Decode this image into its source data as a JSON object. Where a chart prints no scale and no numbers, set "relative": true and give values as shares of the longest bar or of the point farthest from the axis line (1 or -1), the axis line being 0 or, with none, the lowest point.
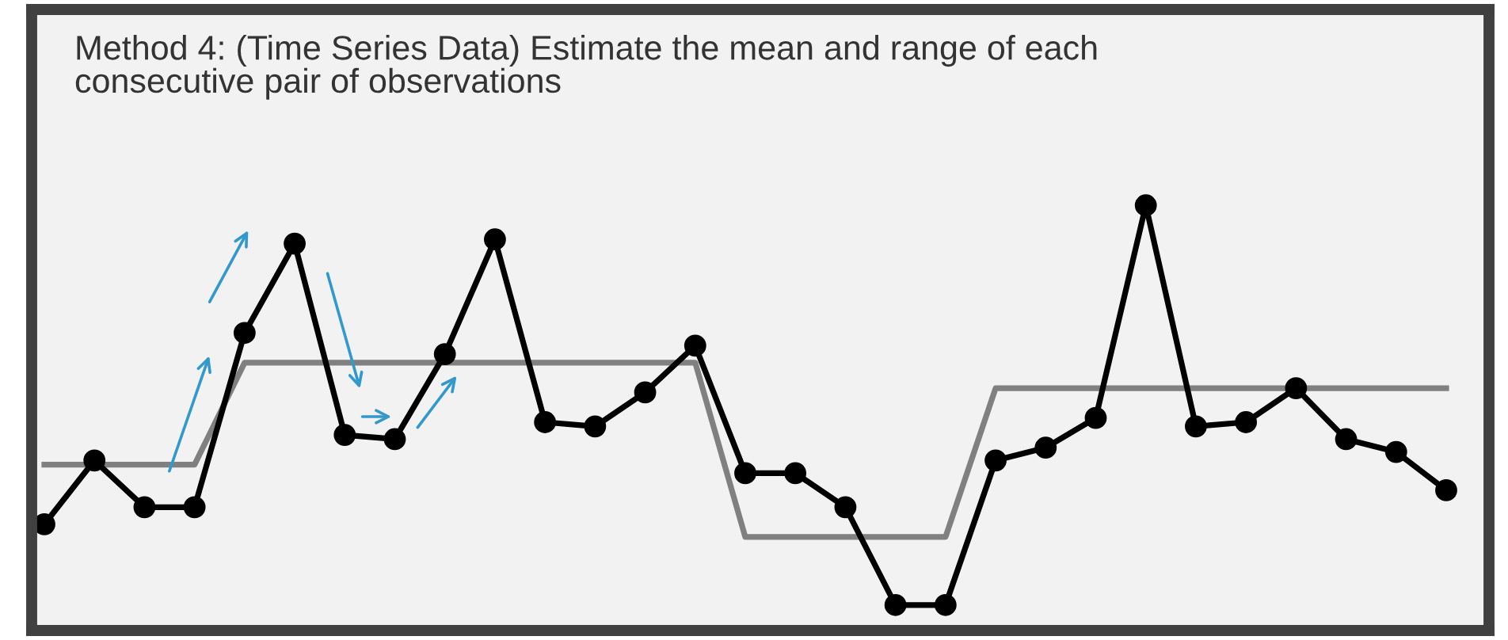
{
  "chart_data": {
    "type": "line",
    "title": "Method 4: (Time Series Data) Estimate the mean and range of each consecutive pair of observations",
    "relative": true,
    "legend": false,
    "line_style": "solid",
    "categories": [
      null,
      null,
      null,
      null,
      null,
      null,
      null,
      null,
      null,
      null,
      null,
      null,
      null,
      null,
      null,
      null,
      null,
      null,
      null,
      null,
      null,
      null,
      null,
      null,
      null,
      null,
      null,
      null,
      null
    ],
    "series": [
      {
        "color": "#808080",
        "marker": "none",
        "values": [
          0.39,
          0.39,
          0.39,
          0.39,
          0.63,
          0.63,
          0.63,
          0.63,
          0.63,
          0.63,
          0.63,
          0.63,
          0.63,
          0.63,
          0.22,
          0.22,
          0.22,
          0.22,
          0.22,
          0.57,
          0.57,
          0.57,
          0.57,
          0.57,
          0.57,
          0.57,
          0.57,
          0.57,
          0.57
        ]
      },
      {
        "color": "#000000",
        "marker": "circle",
        "values": [
          0.25,
          0.4,
          0.29,
          0.29,
          0.7,
          0.91,
          0.46,
          0.45,
          0.65,
          0.92,
          0.49,
          0.48,
          0.56,
          0.67,
          0.37,
          0.37,
          0.29,
          0.06,
          0.06,
          0.4,
          0.43,
          0.5,
          1,
          0.48,
          0.49,
          0.57,
          0.45,
          0.42,
          0.33
        ]
      }
    ]
  }
}
